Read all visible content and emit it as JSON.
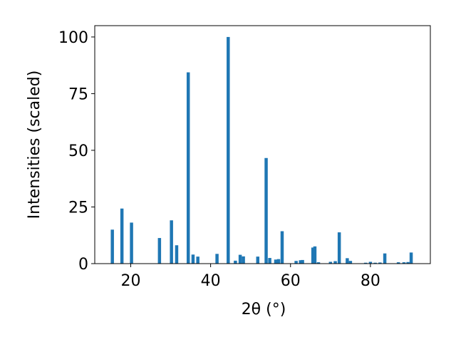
{
  "chart_data": {
    "type": "bar",
    "xlabel": "2θ (°)",
    "ylabel": "Intensities (scaled)",
    "xlim": [
      11,
      95
    ],
    "ylim": [
      0,
      105
    ],
    "x_ticks": [
      20,
      40,
      60,
      80
    ],
    "y_ticks": [
      0,
      25,
      50,
      75,
      100
    ],
    "bar_color": "#1f77b4",
    "bar_width": 0.8,
    "grid": false,
    "series": [
      {
        "x": [
          15.4,
          17.8,
          20.2,
          27.2,
          30.2,
          31.5,
          34.4,
          35.6,
          36.8,
          41.6,
          44.4,
          46.2,
          47.4,
          48.2,
          51.8,
          53.9,
          54.8,
          56.3,
          57.0,
          57.9,
          61.4,
          62.5,
          63.0,
          65.6,
          66.1,
          67.0,
          70.0,
          71.2,
          72.2,
          74.2,
          75.0,
          78.8,
          80.0,
          81.2,
          82.4,
          83.6,
          87.0,
          88.4,
          89.4,
          90.2
        ],
        "values": [
          15,
          24.3,
          18.1,
          11.3,
          19.1,
          8.1,
          84.4,
          4,
          3.1,
          4.3,
          100,
          1.3,
          3.9,
          3.2,
          3.1,
          46.6,
          2.5,
          1.8,
          2,
          14.3,
          1.2,
          1.5,
          1.6,
          7.1,
          7.6,
          0.6,
          0.8,
          1.1,
          13.8,
          2.4,
          1.2,
          0.4,
          0.8,
          0.4,
          0.5,
          4.5,
          0.6,
          0.6,
          0.7,
          4.9
        ]
      }
    ]
  }
}
